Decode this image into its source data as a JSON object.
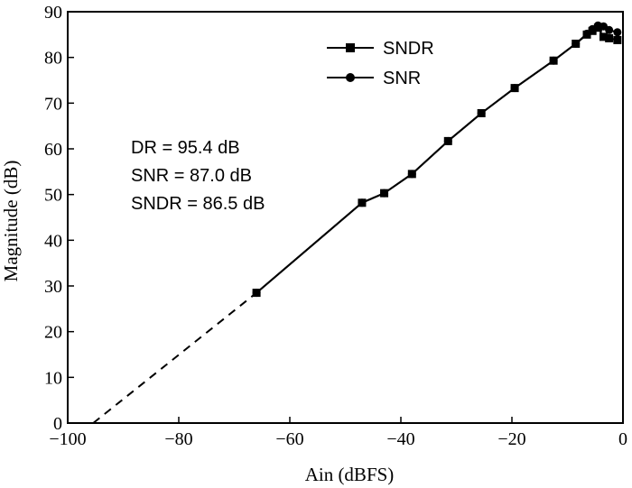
{
  "chart_data": {
    "type": "line",
    "xlabel": "Ain (dBFS)",
    "ylabel": "Magnitude (dB)",
    "xlim": [
      -100,
      0
    ],
    "ylim": [
      0,
      90
    ],
    "xticks": [
      -100,
      -80,
      -60,
      -40,
      -20,
      0
    ],
    "yticks": [
      0,
      10,
      20,
      30,
      40,
      50,
      60,
      70,
      80,
      90
    ],
    "xtick_labels": [
      "−100",
      "−80",
      "−60",
      "−40",
      "−20",
      "0"
    ],
    "ytick_labels": [
      "0",
      "10",
      "20",
      "30",
      "40",
      "50",
      "60",
      "70",
      "80",
      "90"
    ],
    "grid": false,
    "legend_position": "top-right",
    "series": [
      {
        "name": "SNDR",
        "marker": "square",
        "x": [
          -66,
          -47,
          -43,
          -38,
          -31.5,
          -25.5,
          -19.5,
          -12.5,
          -8.5,
          -6.5,
          -5.5,
          -4.5,
          -3.5,
          -2.5,
          -1
        ],
        "y": [
          28.5,
          48.2,
          50.3,
          54.5,
          61.7,
          67.8,
          73.3,
          79.3,
          83.0,
          85.0,
          85.8,
          86.5,
          84.5,
          84.2,
          83.8
        ]
      },
      {
        "name": "SNR",
        "marker": "circle",
        "x": [
          -66,
          -47,
          -43,
          -38,
          -31.5,
          -25.5,
          -19.5,
          -12.5,
          -8.5,
          -6.5,
          -5.5,
          -4.5,
          -3.5,
          -2.5,
          -1
        ],
        "y": [
          28.5,
          48.2,
          50.3,
          54.5,
          61.7,
          67.8,
          73.3,
          79.3,
          83.0,
          85.2,
          86.2,
          87.0,
          86.8,
          86.0,
          85.5
        ]
      }
    ],
    "extrapolation": {
      "style": "dashed",
      "x": [
        -95.4,
        -66
      ],
      "y": [
        0,
        28.5
      ]
    },
    "annotations": [
      "DR = 95.4 dB",
      "SNR = 87.0 dB",
      "SNDR = 86.5 dB"
    ]
  }
}
